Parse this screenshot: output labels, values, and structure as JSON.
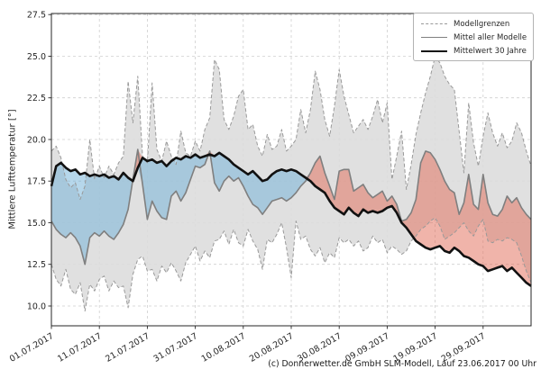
{
  "y_axis": {
    "title": "Mittlere Lufttemperatur [°]"
  },
  "legend": {
    "items": [
      {
        "label": "Modellgrenzen",
        "style": "dashed-gray"
      },
      {
        "label": "Mittel aller Modelle",
        "style": "solid-gray"
      },
      {
        "label": "Mittelwert 30 Jahre",
        "style": "solid-black-thick"
      }
    ]
  },
  "footer": {
    "text": "(c) Donnerwetter.de GmbH SLM-Modell, Lauf 23.06.2017 00 Uhr"
  },
  "colors": {
    "band": "#dcdcdc",
    "blue_fill": "#6eafd7",
    "red_fill": "#e16955",
    "dashed_line": "#999999",
    "gray_line": "#7f7f7f",
    "black_line": "#111111",
    "grid": "#cfcfcf"
  },
  "chart_data": {
    "type": "line",
    "title": "",
    "xlabel": "",
    "ylabel": "Mittlere Lufttemperatur [°]",
    "x_unit": "days since 01.07.2017",
    "x_range": [
      0,
      100
    ],
    "ylim": [
      8.8,
      27.8
    ],
    "grid": true,
    "legend_position": "upper right",
    "y_ticks": [
      10.0,
      12.5,
      15.0,
      17.5,
      20.0,
      22.5,
      25.0,
      27.5
    ],
    "y_tick_labels": [
      "10.0",
      "12.5",
      "15.0",
      "17.5",
      "20.0",
      "22.5",
      "25.0",
      "27.5"
    ],
    "x_tick_days": [
      0,
      10,
      20,
      30,
      40,
      50,
      60,
      70,
      80,
      90
    ],
    "x_tick_labels": [
      "01.07.2017",
      "11.07.2017",
      "21.07.2017",
      "31.07.2017",
      "10.08.2017",
      "20.08.2017",
      "30.08.2017",
      "09.09.2017",
      "19.09.2017",
      "29.09.2017"
    ],
    "fills": {
      "band": "between model max and model min (Modellgrenzen), light gray",
      "blue": "between Mittel aller Modelle and Mittelwert 30 Jahre where model mean is colder",
      "red": "between Mittel aller Modelle and Mittelwert 30 Jahre where model mean is warmer"
    },
    "series": [
      {
        "name": "Modellgrenzen (oben)",
        "style": "dashed",
        "values": [
          19.3,
          19.6,
          18.9,
          17.6,
          17.1,
          17.4,
          16.4,
          17.2,
          20.0,
          17.6,
          18.4,
          17.7,
          18.4,
          17.9,
          18.6,
          19.0,
          23.5,
          21.0,
          23.8,
          19.0,
          18.6,
          23.4,
          19.4,
          18.7,
          19.9,
          19.0,
          18.5,
          20.5,
          19.2,
          19.0,
          19.9,
          19.3,
          20.6,
          21.3,
          24.8,
          24.2,
          21.2,
          20.6,
          21.4,
          22.6,
          23.0,
          20.6,
          20.9,
          19.6,
          19.0,
          20.3,
          19.4,
          19.6,
          20.6,
          19.3,
          19.6,
          20.0,
          21.8,
          20.4,
          21.8,
          24.1,
          23.0,
          21.2,
          20.2,
          22.0,
          24.2,
          22.6,
          21.5,
          20.4,
          20.8,
          21.2,
          20.6,
          21.4,
          22.4,
          21.0,
          22.2,
          17.6,
          19.0,
          20.5,
          17.0,
          18.5,
          20.3,
          21.6,
          22.8,
          23.8,
          25.0,
          24.6,
          23.8,
          23.3,
          23.0,
          20.5,
          18.0,
          22.2,
          19.8,
          18.4,
          20.2,
          21.6,
          20.4,
          19.6,
          20.4,
          19.5,
          19.9,
          21.0,
          20.4,
          19.3,
          18.4
        ]
      },
      {
        "name": "Modellgrenzen (unten)",
        "style": "dashed",
        "values": [
          12.5,
          11.6,
          11.2,
          12.2,
          11.0,
          10.7,
          11.4,
          9.7,
          11.3,
          10.9,
          11.6,
          11.8,
          10.9,
          11.5,
          11.1,
          11.2,
          9.9,
          11.9,
          12.8,
          13.0,
          12.1,
          12.2,
          11.5,
          12.4,
          12.0,
          12.6,
          12.1,
          11.5,
          12.6,
          13.1,
          13.6,
          12.7,
          13.3,
          12.9,
          13.9,
          14.0,
          14.5,
          13.7,
          14.6,
          13.8,
          13.6,
          14.6,
          13.9,
          13.4,
          12.2,
          14.0,
          13.8,
          14.3,
          15.0,
          13.5,
          11.7,
          15.1,
          14.0,
          14.2,
          13.4,
          13.0,
          13.5,
          12.6,
          13.2,
          12.9,
          14.1,
          13.8,
          14.0,
          13.6,
          13.9,
          13.3,
          13.5,
          14.2,
          13.8,
          14.0,
          13.2,
          13.6,
          13.4,
          13.1,
          13.3,
          13.9,
          14.2,
          14.6,
          14.8,
          15.1,
          15.3,
          14.8,
          14.0,
          14.2,
          14.4,
          14.7,
          15.0,
          14.5,
          14.2,
          14.8,
          15.2,
          13.9,
          13.8,
          14.0,
          13.9,
          14.1,
          14.0,
          13.8,
          13.0,
          12.1,
          11.4
        ]
      },
      {
        "name": "Mittel aller Modelle",
        "style": "solid-gray",
        "values": [
          15.1,
          14.6,
          14.3,
          14.1,
          14.4,
          14.1,
          13.6,
          12.5,
          14.1,
          14.4,
          14.2,
          14.5,
          14.2,
          14.0,
          14.4,
          14.9,
          15.8,
          17.6,
          19.4,
          17.3,
          15.2,
          16.3,
          15.7,
          15.3,
          15.2,
          16.6,
          16.9,
          16.3,
          16.8,
          17.6,
          18.4,
          18.3,
          18.5,
          19.3,
          17.4,
          16.9,
          17.5,
          17.8,
          17.5,
          17.7,
          17.2,
          16.6,
          16.1,
          15.9,
          15.5,
          15.9,
          16.3,
          16.4,
          16.5,
          16.3,
          16.5,
          16.8,
          17.2,
          17.5,
          18.0,
          18.6,
          19.0,
          18.0,
          17.2,
          16.4,
          18.1,
          18.2,
          18.2,
          16.9,
          17.1,
          17.3,
          16.8,
          16.5,
          16.7,
          16.9,
          16.3,
          16.6,
          16.1,
          15.1,
          15.2,
          15.6,
          16.4,
          18.6,
          19.3,
          19.2,
          18.8,
          18.2,
          17.5,
          17.0,
          16.8,
          15.5,
          16.2,
          17.9,
          16.1,
          15.8,
          17.9,
          16.2,
          15.5,
          15.4,
          15.8,
          16.6,
          16.2,
          16.5,
          15.9,
          15.5,
          15.2
        ]
      },
      {
        "name": "Mittelwert 30 Jahre",
        "style": "solid-black-thick",
        "values": [
          17.2,
          18.4,
          18.6,
          18.3,
          18.1,
          18.2,
          17.9,
          18.0,
          17.8,
          17.9,
          17.8,
          17.9,
          17.7,
          17.8,
          17.6,
          18.0,
          17.7,
          17.5,
          18.3,
          18.9,
          18.7,
          18.8,
          18.6,
          18.7,
          18.4,
          18.7,
          18.9,
          18.8,
          19.0,
          18.9,
          19.1,
          18.9,
          19.0,
          19.1,
          19.0,
          19.2,
          19.0,
          18.8,
          18.5,
          18.3,
          18.1,
          17.9,
          18.1,
          17.8,
          17.5,
          17.6,
          17.9,
          18.1,
          18.2,
          18.1,
          18.2,
          18.1,
          17.9,
          17.7,
          17.5,
          17.2,
          17.0,
          16.8,
          16.3,
          15.9,
          15.7,
          15.5,
          15.9,
          15.6,
          15.4,
          15.8,
          15.6,
          15.7,
          15.6,
          15.7,
          15.9,
          16.0,
          15.6,
          15.0,
          14.7,
          14.3,
          13.9,
          13.7,
          13.5,
          13.4,
          13.5,
          13.6,
          13.3,
          13.2,
          13.5,
          13.3,
          13.0,
          12.9,
          12.7,
          12.5,
          12.4,
          12.1,
          12.2,
          12.3,
          12.4,
          12.1,
          12.3,
          12.0,
          11.7,
          11.4,
          11.2
        ]
      }
    ]
  }
}
